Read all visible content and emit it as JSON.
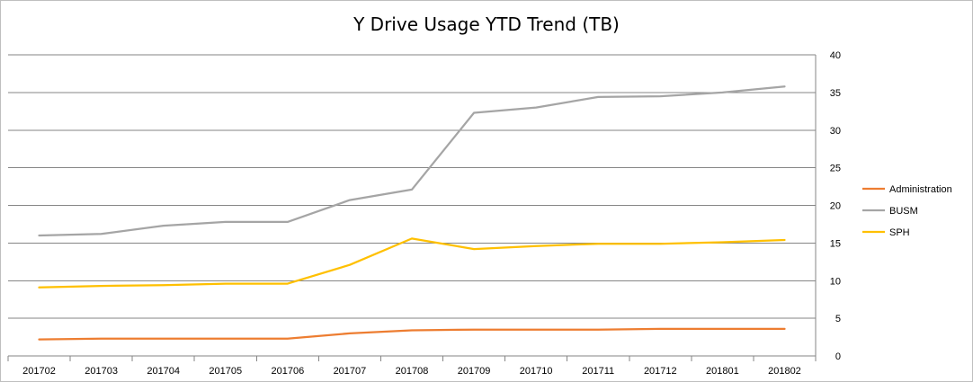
{
  "chart_data": {
    "type": "line",
    "title": "Y Drive Usage YTD Trend (TB)",
    "xlabel": "",
    "ylabel": "",
    "categories": [
      "201702",
      "201703",
      "201704",
      "201705",
      "201706",
      "201707",
      "201708",
      "201709",
      "201710",
      "201711",
      "201712",
      "201801",
      "201802"
    ],
    "ylim": [
      0,
      40
    ],
    "yticks": [
      0,
      5,
      10,
      15,
      20,
      25,
      30,
      35,
      40
    ],
    "y_axis_side": "right",
    "grid": true,
    "legend_position": "right",
    "series": [
      {
        "name": "Administration",
        "color": "#ED7D31",
        "values": [
          2.2,
          2.3,
          2.3,
          2.3,
          2.3,
          3.0,
          3.4,
          3.5,
          3.5,
          3.5,
          3.6,
          3.6,
          3.6
        ]
      },
      {
        "name": "BUSM",
        "color": "#A5A5A5",
        "values": [
          16.0,
          16.2,
          17.3,
          17.8,
          17.8,
          20.7,
          22.1,
          32.3,
          33.0,
          34.4,
          34.5,
          35.0,
          35.8
        ]
      },
      {
        "name": "SPH",
        "color": "#FFC000",
        "values": [
          9.1,
          9.3,
          9.4,
          9.6,
          9.6,
          12.1,
          15.6,
          14.2,
          14.6,
          14.9,
          14.9,
          15.1,
          15.4
        ]
      }
    ]
  }
}
